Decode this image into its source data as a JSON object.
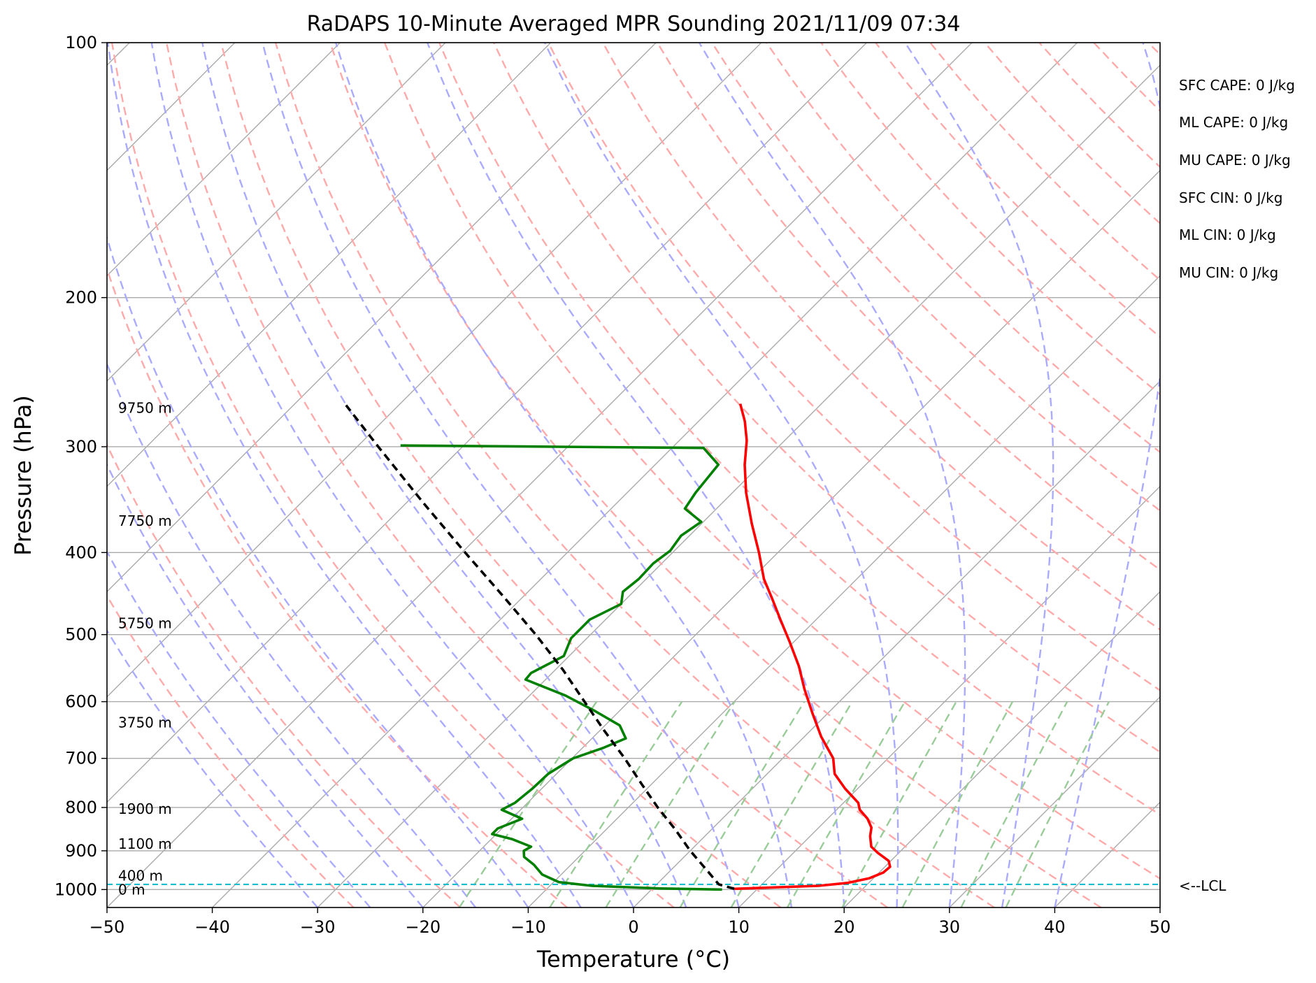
{
  "chart_data": {
    "type": "line",
    "title": "RaDAPS 10-Minute Averaged MPR Sounding 2021/11/09 07:34",
    "xlabel": "Temperature (°C)",
    "ylabel": "Pressure (hPa)",
    "xlim": [
      -50,
      50
    ],
    "ylim": [
      1050,
      100
    ],
    "y_scale": "log",
    "skew": "skew-T log-P",
    "x_ticks": [
      -50,
      -40,
      -30,
      -20,
      -10,
      0,
      10,
      20,
      30,
      40,
      50
    ],
    "x_tick_labels": [
      "−50",
      "−40",
      "−30",
      "−20",
      "−10",
      "0",
      "10",
      "20",
      "30",
      "40",
      "50"
    ],
    "y_ticks": [
      100,
      200,
      300,
      400,
      500,
      600,
      700,
      800,
      900,
      1000
    ],
    "y_tick_labels": [
      "100",
      "200",
      "300",
      "400",
      "500",
      "600",
      "700",
      "800",
      "900",
      "1000"
    ],
    "grid": true,
    "series": [
      {
        "name": "",
        "role": "temperature",
        "color": "#ff0000",
        "points": [
          [
            998,
            7.8
          ],
          [
            990,
            15.5
          ],
          [
            982,
            18.0
          ],
          [
            970,
            19.6
          ],
          [
            955,
            20.4
          ],
          [
            940,
            20.5
          ],
          [
            925,
            19.8
          ],
          [
            905,
            18.0
          ],
          [
            890,
            16.8
          ],
          [
            865,
            15.7
          ],
          [
            845,
            15.0
          ],
          [
            825,
            13.8
          ],
          [
            805,
            12.2
          ],
          [
            790,
            11.4
          ],
          [
            760,
            8.8
          ],
          [
            730,
            6.4
          ],
          [
            700,
            4.8
          ],
          [
            660,
            1.6
          ],
          [
            620,
            -1.4
          ],
          [
            580,
            -4.5
          ],
          [
            545,
            -7.2
          ],
          [
            510,
            -10.4
          ],
          [
            480,
            -13.4
          ],
          [
            455,
            -16.0
          ],
          [
            430,
            -18.8
          ],
          [
            400,
            -21.8
          ],
          [
            370,
            -25.2
          ],
          [
            340,
            -28.7
          ],
          [
            315,
            -31.5
          ],
          [
            295,
            -33.6
          ],
          [
            280,
            -35.6
          ],
          [
            267,
            -37.7
          ]
        ]
      },
      {
        "name": "",
        "role": "dewpoint",
        "color": "#008000",
        "points": [
          [
            1000,
            6.7
          ],
          [
            997,
            0.8
          ],
          [
            990,
            -6.0
          ],
          [
            980,
            -9.5
          ],
          [
            960,
            -11.8
          ],
          [
            935,
            -13.5
          ],
          [
            915,
            -15.2
          ],
          [
            900,
            -15.8
          ],
          [
            890,
            -15.5
          ],
          [
            872,
            -18.0
          ],
          [
            860,
            -20.4
          ],
          [
            847,
            -20.4
          ],
          [
            825,
            -19.0
          ],
          [
            805,
            -21.8
          ],
          [
            790,
            -21.2
          ],
          [
            760,
            -20.9
          ],
          [
            730,
            -20.8
          ],
          [
            700,
            -19.9
          ],
          [
            680,
            -18.0
          ],
          [
            663,
            -16.8
          ],
          [
            640,
            -18.6
          ],
          [
            615,
            -22.4
          ],
          [
            590,
            -26.6
          ],
          [
            565,
            -31.9
          ],
          [
            555,
            -32.0
          ],
          [
            530,
            -30.5
          ],
          [
            505,
            -31.5
          ],
          [
            480,
            -31.5
          ],
          [
            460,
            -30.0
          ],
          [
            445,
            -31.0
          ],
          [
            430,
            -30.7
          ],
          [
            412,
            -30.8
          ],
          [
            398,
            -30.4
          ],
          [
            382,
            -30.8
          ],
          [
            368,
            -30.2
          ],
          [
            355,
            -33.0
          ],
          [
            340,
            -33.5
          ],
          [
            315,
            -34.0
          ],
          [
            301,
            -37.0
          ],
          [
            300,
            -51.0
          ],
          [
            299,
            -66.0
          ]
        ]
      },
      {
        "name": "",
        "role": "parcel",
        "color": "#000000",
        "points": [
          [
            998,
            7.8
          ],
          [
            986,
            5.9
          ],
          [
            950,
            3.5
          ],
          [
            900,
            0.0
          ],
          [
            850,
            -3.4
          ],
          [
            800,
            -7.2
          ],
          [
            750,
            -11.0
          ],
          [
            700,
            -15.0
          ],
          [
            650,
            -19.5
          ],
          [
            600,
            -24.2
          ],
          [
            550,
            -29.3
          ],
          [
            500,
            -35.2
          ],
          [
            450,
            -42.0
          ],
          [
            400,
            -49.7
          ],
          [
            350,
            -58.3
          ],
          [
            300,
            -68.0
          ],
          [
            268,
            -75.0
          ]
        ]
      }
    ],
    "lcl_pressure": 986,
    "lcl_label": "<--LCL",
    "height_labels": [
      {
        "text": "9750 m",
        "p": 270
      },
      {
        "text": "7750 m",
        "p": 367
      },
      {
        "text": "5750 m",
        "p": 485
      },
      {
        "text": "3750 m",
        "p": 635
      },
      {
        "text": "1900 m",
        "p": 803
      },
      {
        "text": "1100 m",
        "p": 883
      },
      {
        "text": "400 m",
        "p": 963
      },
      {
        "text": "0 m",
        "p": 1000
      }
    ],
    "indices": [
      "SFC CAPE: 0 J/kg",
      "ML CAPE: 0 J/kg",
      "MU CAPE: 0 J/kg",
      "SFC CIN: 0 J/kg",
      "ML CIN: 0 J/kg",
      "MU CIN: 0 J/kg"
    ],
    "colors": {
      "temperature": "#ff0000",
      "dewpoint": "#008000",
      "parcel": "#000000",
      "lcl": "#17becf",
      "isotherm": "#aaaaaa",
      "dry_adiabat": "#ffaaaa",
      "moist_adiabat": "#aaaaff",
      "mixing_ratio": "#99cc99"
    }
  }
}
